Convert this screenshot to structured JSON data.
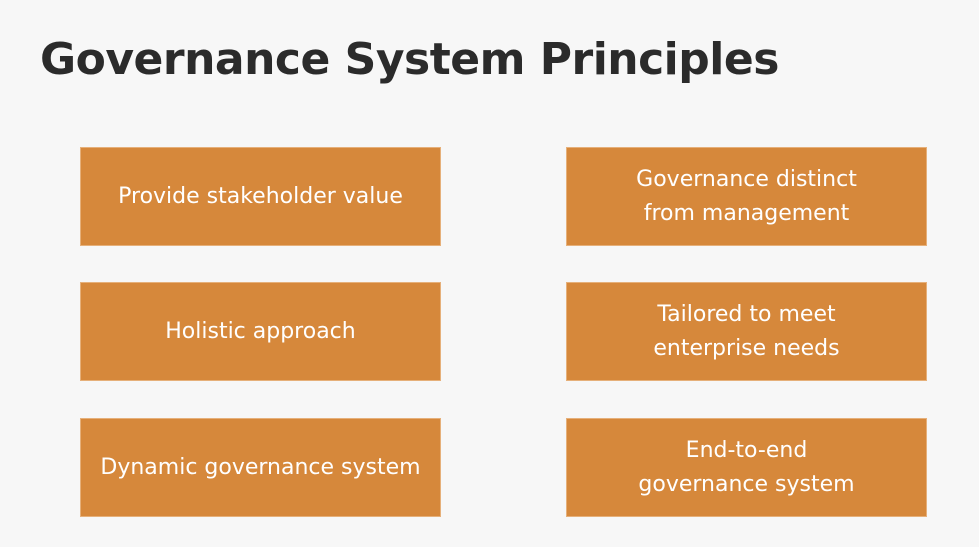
{
  "slide": {
    "title": "Governance System Principles",
    "box_color": "#d6883b",
    "principles": [
      "Provide stakeholder value",
      "Governance distinct\nfrom management",
      "Holistic approach",
      "Tailored to meet\nenterprise needs",
      "Dynamic governance system",
      "End-to-end\ngovernance system"
    ]
  }
}
